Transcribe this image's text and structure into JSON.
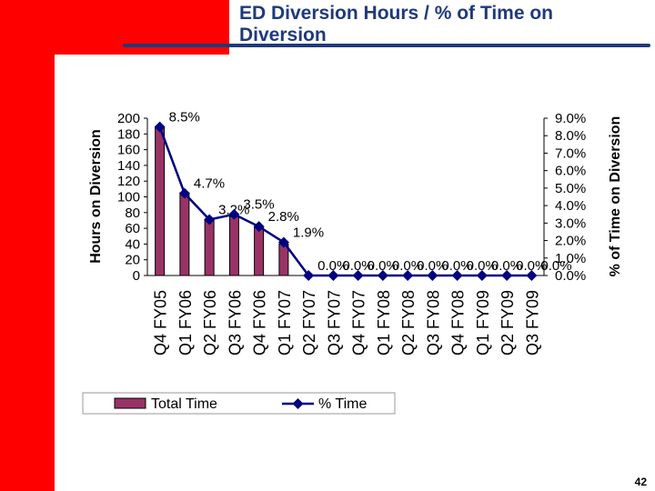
{
  "slide": {
    "title": "ED Diversion Hours / % of Time on Diversion",
    "page_number": "42"
  },
  "colors": {
    "bar": "#993366",
    "line": "#000080",
    "accent_red": "#ff0000",
    "title": "#1f3a7a"
  },
  "chart_data": {
    "type": "bar",
    "categories": [
      "Q4 FY05",
      "Q1 FY06",
      "Q2 FY06",
      "Q3 FY06",
      "Q4 FY06",
      "Q1 FY07",
      "Q2 FY07",
      "Q3 FY07",
      "Q4 FY07",
      "Q1 FY08",
      "Q2 FY08",
      "Q3 FY08",
      "Q4 FY08",
      "Q1 FY09",
      "Q2 FY09",
      "Q3 FY09"
    ],
    "series": [
      {
        "name": "Total Time",
        "type": "bar",
        "axis": "left",
        "values": [
          188,
          105,
          70,
          75,
          62,
          40,
          0,
          0,
          0,
          0,
          0,
          0,
          0,
          0,
          0,
          0
        ]
      },
      {
        "name": "% Time",
        "type": "line",
        "axis": "right",
        "values": [
          8.5,
          4.7,
          3.2,
          3.5,
          2.8,
          1.9,
          0,
          0,
          0,
          0,
          0,
          0,
          0,
          0,
          0,
          0
        ],
        "labels": [
          "8.5%",
          "4.7%",
          "3.2%",
          "3.5%",
          "2.8%",
          "1.9%",
          "0.0%",
          "0.0%",
          "0.0%",
          "0.0%",
          "0.0%",
          "0.0%",
          "0.0%",
          "0.0%",
          "0.0%",
          "0.0%"
        ]
      }
    ],
    "ylabel": "Hours on Diversion",
    "y2label": "% of Time on Diversion",
    "ylim": [
      0,
      200
    ],
    "yticks": [
      "0",
      "20",
      "40",
      "60",
      "80",
      "100",
      "120",
      "140",
      "160",
      "180",
      "200"
    ],
    "y2lim": [
      0,
      9
    ],
    "y2ticks": [
      "0.0%",
      "1.0%",
      "2.0%",
      "3.0%",
      "4.0%",
      "5.0%",
      "6.0%",
      "7.0%",
      "8.0%",
      "9.0%"
    ],
    "grid": false,
    "legend_position": "bottom"
  }
}
